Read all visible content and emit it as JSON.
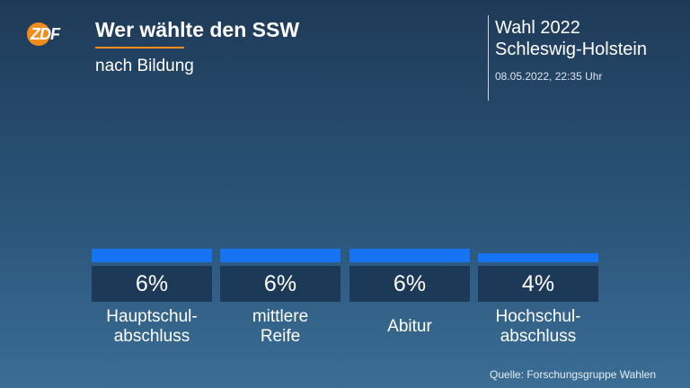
{
  "header": {
    "logo_text": "ZDF",
    "title": "Wer wählte den SSW",
    "subtitle": "nach Bildung",
    "election_line1": "Wahl 2022",
    "election_line2": "Schleswig-Holstein",
    "timestamp": "08.05.2022, 22:35 Uhr"
  },
  "colors": {
    "accent": "#f28c1a",
    "bar": "#1673f1",
    "value_box": "#1c3a58"
  },
  "chart_data": {
    "type": "bar",
    "title": "Wer wählte den SSW",
    "subtitle": "nach Bildung",
    "categories": [
      "Hauptschul-\nabschluss",
      "mittlere\nReife",
      "Abitur",
      "Hochschul-\nabschluss"
    ],
    "values": [
      6,
      6,
      6,
      4
    ],
    "value_labels": [
      "6%",
      "6%",
      "6%",
      "4%"
    ],
    "unit": "%",
    "xlabel": "",
    "ylabel": "",
    "grid": false
  },
  "footer": {
    "source": "Quelle: Forschungsgruppe Wahlen"
  }
}
